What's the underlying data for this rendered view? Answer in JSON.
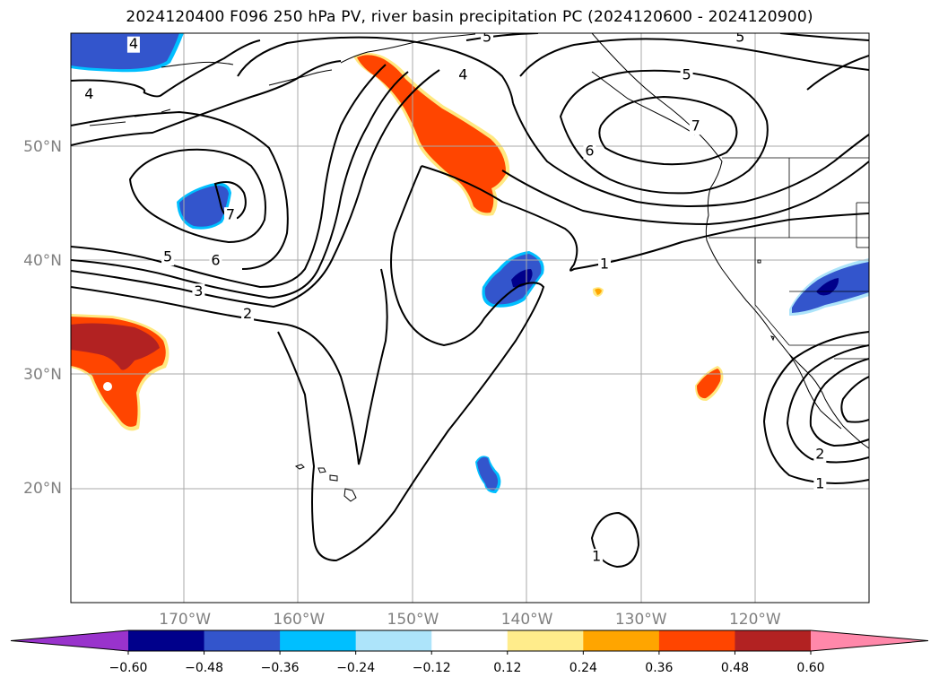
{
  "title": "2024120400 F096 250 hPa PV, river basin precipitation PC (2024120600 - 2024120900)",
  "map": {
    "projection": "equirectangular",
    "lon_range": [
      -180,
      -110
    ],
    "lat_range": [
      10,
      60
    ],
    "lat_ticks": [
      {
        "value": 50,
        "label": "50°N"
      },
      {
        "value": 40,
        "label": "40°N"
      },
      {
        "value": 30,
        "label": "30°N"
      },
      {
        "value": 20,
        "label": "20°N"
      }
    ],
    "lon_ticks": [
      {
        "value": -170,
        "label": "170°W"
      },
      {
        "value": -160,
        "label": "160°W"
      },
      {
        "value": -150,
        "label": "150°W"
      },
      {
        "value": -140,
        "label": "140°W"
      },
      {
        "value": -130,
        "label": "130°W"
      },
      {
        "value": -120,
        "label": "120°W"
      }
    ],
    "contour_labels": [
      {
        "text": "4",
        "lon": -174.5,
        "lat": 59.0
      },
      {
        "text": "5",
        "lon": -143.5,
        "lat": 59.6
      },
      {
        "text": "5",
        "lon": -121.3,
        "lat": 59.6
      },
      {
        "text": "4",
        "lon": -178.4,
        "lat": 54.6
      },
      {
        "text": "4",
        "lon": -145.6,
        "lat": 56.3
      },
      {
        "text": "5",
        "lon": -126.0,
        "lat": 56.3
      },
      {
        "text": "7",
        "lon": -125.2,
        "lat": 51.8
      },
      {
        "text": "6",
        "lon": -134.5,
        "lat": 49.6
      },
      {
        "text": "7",
        "lon": -166.0,
        "lat": 44.0
      },
      {
        "text": "5",
        "lon": -171.5,
        "lat": 40.3
      },
      {
        "text": "6",
        "lon": -167.3,
        "lat": 40.0
      },
      {
        "text": "3",
        "lon": -168.8,
        "lat": 37.3
      },
      {
        "text": "2",
        "lon": -164.5,
        "lat": 35.3
      },
      {
        "text": "1",
        "lon": -133.2,
        "lat": 39.7
      },
      {
        "text": "2",
        "lon": -114.3,
        "lat": 23.0
      },
      {
        "text": "1",
        "lon": -114.3,
        "lat": 20.4
      },
      {
        "text": "1",
        "lon": -133.9,
        "lat": 14.0
      }
    ]
  },
  "colorbar": {
    "ticks": [
      "−0.60",
      "−0.48",
      "−0.36",
      "−0.24",
      "−0.12",
      "0.12",
      "0.24",
      "0.36",
      "0.48",
      "0.60"
    ],
    "colors": [
      "#9933cc",
      "#00008b",
      "#3355cc",
      "#00bfff",
      "#ade4fa",
      "#ffffff",
      "#ffec8b",
      "#ffa500",
      "#ff4500",
      "#b22222",
      "#ff88aa"
    ]
  },
  "colors": {
    "deep_orange": "#ff4500",
    "dark_red": "#b22222",
    "yellow_edge": "#ffe880",
    "medium_blue": "#3355cc",
    "dark_navy": "#00008b",
    "light_cyan": "#00bfff"
  }
}
